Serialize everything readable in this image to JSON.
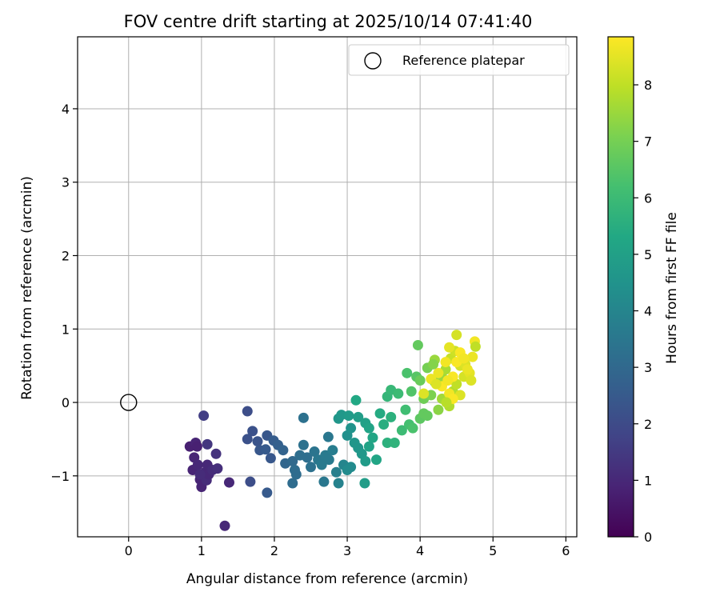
{
  "chart_data": {
    "type": "scatter",
    "title": "FOV centre drift starting at 2025/10/14 07:41:40",
    "xlabel": "Angular distance from reference (arcmin)",
    "ylabel": "Rotation from reference (arcmin)",
    "xlim": [
      -0.7,
      6.15
    ],
    "ylim": [
      -1.83,
      4.98
    ],
    "xticks": [
      0,
      1,
      2,
      3,
      4,
      5,
      6
    ],
    "xtick_labels": [
      "0",
      "1",
      "2",
      "3",
      "4",
      "5",
      "6"
    ],
    "yticks": [
      -1,
      0,
      1,
      2,
      3,
      4
    ],
    "ytick_labels": [
      "−1",
      "0",
      "1",
      "2",
      "3",
      "4"
    ],
    "grid": true,
    "legend": {
      "position": "top-right",
      "entries": [
        "Reference platepar"
      ]
    },
    "reference_point": {
      "x": 0,
      "y": 0,
      "label": "Reference platepar"
    },
    "colorbar": {
      "label": "Hours from first FF file",
      "min": 0,
      "max": 8.85,
      "ticks": [
        0,
        1,
        2,
        3,
        4,
        5,
        6,
        7,
        8
      ],
      "tick_labels": [
        "0",
        "1",
        "2",
        "3",
        "4",
        "5",
        "6",
        "7",
        "8"
      ],
      "colormap": "viridis"
    },
    "points": [
      [
        0.84,
        -0.6,
        0.8
      ],
      [
        0.92,
        -0.55,
        0.9
      ],
      [
        0.94,
        -0.6,
        0.8
      ],
      [
        0.9,
        -0.75,
        0.9
      ],
      [
        0.88,
        -0.92,
        0.9
      ],
      [
        0.95,
        -0.85,
        1.0
      ],
      [
        0.98,
        -1.05,
        0.9
      ],
      [
        1.0,
        -1.15,
        0.9
      ],
      [
        1.05,
        -0.95,
        1.0
      ],
      [
        1.07,
        -1.06,
        1.1
      ],
      [
        1.1,
        -0.98,
        1.0
      ],
      [
        1.08,
        -0.85,
        1.0
      ],
      [
        1.15,
        -0.92,
        1.1
      ],
      [
        1.22,
        -0.9,
        1.2
      ],
      [
        1.2,
        -0.7,
        1.3
      ],
      [
        1.08,
        -0.57,
        1.4
      ],
      [
        1.03,
        -0.18,
        1.6
      ],
      [
        0.98,
        -0.98,
        1.1
      ],
      [
        1.38,
        -1.09,
        1.0
      ],
      [
        1.32,
        -1.68,
        1.0
      ],
      [
        1.63,
        -0.12,
        2.1
      ],
      [
        1.7,
        -0.39,
        2.2
      ],
      [
        1.63,
        -0.5,
        2.2
      ],
      [
        1.77,
        -0.53,
        2.3
      ],
      [
        1.8,
        -0.65,
        2.4
      ],
      [
        1.67,
        -1.08,
        2.1
      ],
      [
        1.88,
        -0.64,
        2.5
      ],
      [
        1.95,
        -0.76,
        2.4
      ],
      [
        1.9,
        -0.45,
        2.4
      ],
      [
        1.99,
        -0.52,
        2.6
      ],
      [
        2.05,
        -0.58,
        2.7
      ],
      [
        2.12,
        -0.65,
        2.8
      ],
      [
        2.15,
        -0.83,
        2.9
      ],
      [
        2.25,
        -0.8,
        3.0
      ],
      [
        2.28,
        -0.92,
        3.1
      ],
      [
        2.3,
        -0.98,
        3.1
      ],
      [
        2.25,
        -1.1,
        3.1
      ],
      [
        2.35,
        -0.72,
        3.2
      ],
      [
        2.4,
        -0.58,
        3.3
      ],
      [
        2.45,
        -0.75,
        3.2
      ],
      [
        2.5,
        -0.88,
        3.3
      ],
      [
        2.55,
        -0.67,
        3.4
      ],
      [
        2.6,
        -0.78,
        3.5
      ],
      [
        2.65,
        -0.85,
        3.6
      ],
      [
        2.7,
        -0.72,
        3.6
      ],
      [
        2.75,
        -0.78,
        3.6
      ],
      [
        2.8,
        -0.65,
        3.7
      ],
      [
        2.68,
        -1.08,
        3.5
      ],
      [
        2.74,
        -0.47,
        3.5
      ],
      [
        2.4,
        -0.21,
        3.3
      ],
      [
        1.9,
        -1.23,
        2.5
      ],
      [
        2.85,
        -0.95,
        3.8
      ],
      [
        2.88,
        -1.1,
        3.9
      ],
      [
        2.95,
        -0.85,
        4.0
      ],
      [
        3.0,
        -0.92,
        4.2
      ],
      [
        3.05,
        -0.88,
        4.2
      ],
      [
        3.0,
        -0.45,
        4.4
      ],
      [
        3.05,
        -0.35,
        4.5
      ],
      [
        3.1,
        -0.55,
        4.6
      ],
      [
        3.15,
        -0.62,
        4.6
      ],
      [
        3.2,
        -0.7,
        4.7
      ],
      [
        3.25,
        -0.8,
        4.8
      ],
      [
        3.15,
        -0.2,
        4.9
      ],
      [
        3.25,
        -0.28,
        5.0
      ],
      [
        3.3,
        -0.35,
        5.1
      ],
      [
        3.35,
        -0.48,
        5.2
      ],
      [
        3.3,
        -0.6,
        5.1
      ],
      [
        3.4,
        -0.78,
        5.2
      ],
      [
        3.24,
        -1.1,
        4.9
      ],
      [
        2.88,
        -0.22,
        4.6
      ],
      [
        2.92,
        -0.17,
        4.7
      ],
      [
        3.02,
        -0.18,
        4.8
      ],
      [
        3.12,
        0.03,
        5.3
      ],
      [
        3.45,
        -0.15,
        5.4
      ],
      [
        3.5,
        -0.3,
        5.5
      ],
      [
        3.55,
        -0.55,
        5.6
      ],
      [
        3.6,
        -0.2,
        5.6
      ],
      [
        3.65,
        -0.55,
        5.7
      ],
      [
        3.55,
        0.08,
        5.8
      ],
      [
        3.6,
        0.17,
        5.9
      ],
      [
        3.7,
        0.12,
        6.0
      ],
      [
        3.75,
        -0.38,
        6.0
      ],
      [
        3.8,
        -0.1,
        6.1
      ],
      [
        3.85,
        -0.3,
        6.2
      ],
      [
        3.9,
        -0.35,
        6.3
      ],
      [
        3.88,
        0.15,
        6.4
      ],
      [
        3.95,
        0.35,
        6.5
      ],
      [
        3.97,
        0.78,
        6.7
      ],
      [
        4.0,
        -0.22,
        6.6
      ],
      [
        4.05,
        -0.15,
        6.7
      ],
      [
        4.1,
        -0.18,
        6.7
      ],
      [
        4.0,
        0.3,
        6.8
      ],
      [
        4.05,
        0.05,
        6.9
      ],
      [
        3.82,
        0.4,
        6.3
      ],
      [
        4.1,
        0.47,
        7.0
      ],
      [
        4.15,
        0.1,
        7.1
      ],
      [
        4.2,
        0.28,
        7.3
      ],
      [
        4.25,
        -0.1,
        7.3
      ],
      [
        4.3,
        0.35,
        7.5
      ],
      [
        4.35,
        0.45,
        7.7
      ],
      [
        4.2,
        0.58,
        7.5
      ],
      [
        4.3,
        0.05,
        7.6
      ],
      [
        4.4,
        -0.05,
        7.8
      ],
      [
        4.45,
        0.15,
        7.8
      ],
      [
        4.5,
        0.25,
        8.0
      ],
      [
        4.42,
        0.6,
        8.1
      ],
      [
        4.48,
        0.7,
        8.2
      ],
      [
        4.5,
        0.92,
        8.3
      ],
      [
        4.55,
        0.5,
        8.3
      ],
      [
        4.6,
        0.35,
        8.3
      ],
      [
        4.55,
        0.1,
        8.4
      ],
      [
        4.62,
        0.52,
        8.4
      ],
      [
        4.68,
        0.4,
        8.5
      ],
      [
        4.7,
        0.3,
        8.4
      ],
      [
        4.72,
        0.62,
        8.6
      ],
      [
        4.75,
        0.83,
        8.7
      ],
      [
        4.76,
        0.76,
        8.0
      ],
      [
        4.4,
        0.75,
        8.5
      ],
      [
        4.35,
        0.55,
        8.7
      ],
      [
        4.45,
        0.35,
        8.8
      ],
      [
        4.4,
        0.12,
        8.7
      ],
      [
        4.3,
        0.22,
        8.8
      ],
      [
        4.25,
        0.4,
        8.6
      ],
      [
        4.5,
        0.55,
        8.8
      ],
      [
        4.55,
        0.68,
        8.8
      ],
      [
        4.6,
        0.6,
        8.7
      ],
      [
        4.38,
        0.3,
        8.7
      ],
      [
        4.65,
        0.45,
        8.6
      ],
      [
        4.45,
        0.05,
        8.8
      ],
      [
        4.05,
        0.12,
        8.4
      ],
      [
        4.15,
        0.32,
        8.6
      ],
      [
        4.22,
        0.25,
        8.4
      ],
      [
        4.36,
        0.0,
        7.9
      ],
      [
        4.18,
        0.52,
        7.2
      ]
    ]
  }
}
